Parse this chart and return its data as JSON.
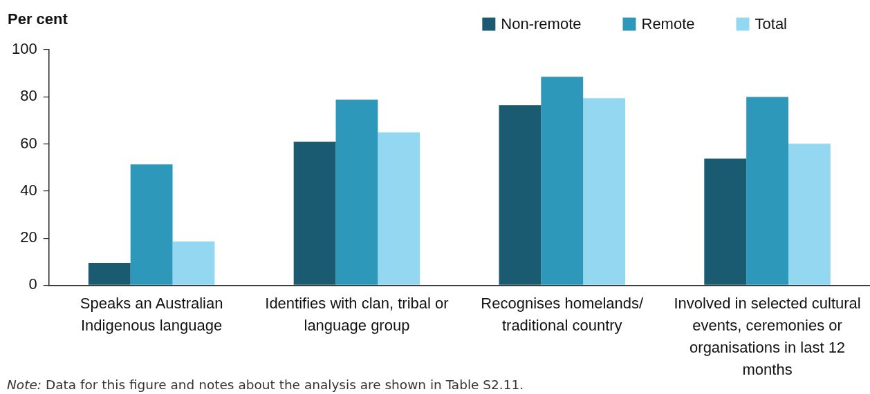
{
  "chart_data": {
    "type": "bar",
    "ylabel": "Per cent",
    "categories": [
      "Speaks an Australian Indigenous language",
      "Identifies with clan, tribal or language group",
      "Recognises homelands/traditional country",
      "Involved in selected cultural events, ceremonies or organisations in last 12 months"
    ],
    "series": [
      {
        "name": "Non-remote",
        "color": "#1a5b72",
        "values": [
          9.5,
          60.9,
          76.5,
          53.8
        ]
      },
      {
        "name": "Remote",
        "color": "#2e98bb",
        "values": [
          51.3,
          78.8,
          88.5,
          79.9
        ]
      },
      {
        "name": "Total",
        "color": "#93d8f0",
        "values": [
          18.6,
          64.9,
          79.4,
          60.1
        ]
      }
    ],
    "ylim": [
      0,
      100
    ],
    "yticks": [
      0,
      20,
      40,
      60,
      80,
      100
    ],
    "grid": false,
    "legend": "top right",
    "annotations": [
      "Note: Data for this figure and notes about the analysis are shown in Table S2.11."
    ]
  }
}
